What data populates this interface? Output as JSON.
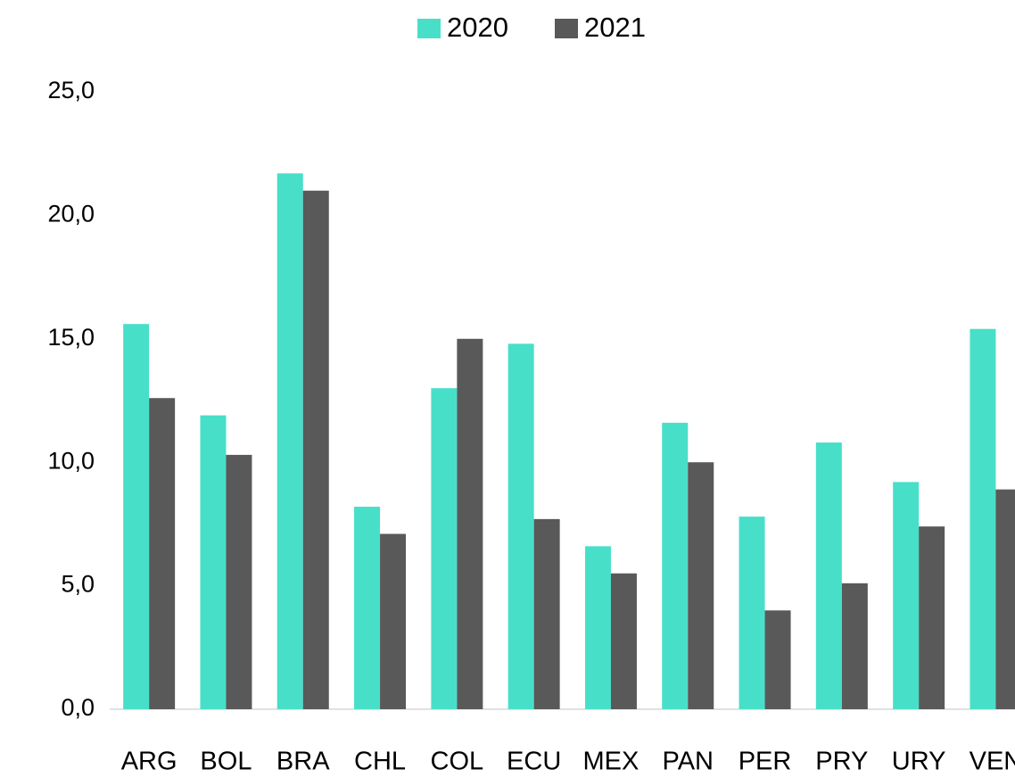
{
  "chart_data": {
    "type": "bar",
    "categories": [
      "ARG",
      "BOL",
      "BRA",
      "CHL",
      "COL",
      "ECU",
      "MEX",
      "PAN",
      "PER",
      "PRY",
      "URY",
      "VEN"
    ],
    "series": [
      {
        "name": "2020",
        "color": "#48dfc9",
        "values": [
          15.6,
          11.9,
          21.7,
          8.2,
          13.0,
          14.8,
          6.6,
          11.6,
          7.8,
          10.8,
          9.2,
          15.4
        ]
      },
      {
        "name": "2021",
        "color": "#595959",
        "values": [
          12.6,
          10.3,
          21.0,
          7.1,
          15.0,
          7.7,
          5.5,
          10.0,
          4.0,
          5.1,
          7.4,
          8.9
        ]
      }
    ],
    "ylim": [
      0,
      25
    ],
    "yticks": [
      {
        "value": 0,
        "label": "0,0"
      },
      {
        "value": 5,
        "label": "5,0"
      },
      {
        "value": 10,
        "label": "10,0"
      },
      {
        "value": 15,
        "label": "15,0"
      },
      {
        "value": 20,
        "label": "20,0"
      },
      {
        "value": 25,
        "label": "25,0"
      }
    ],
    "grid": false,
    "legend": "top"
  }
}
